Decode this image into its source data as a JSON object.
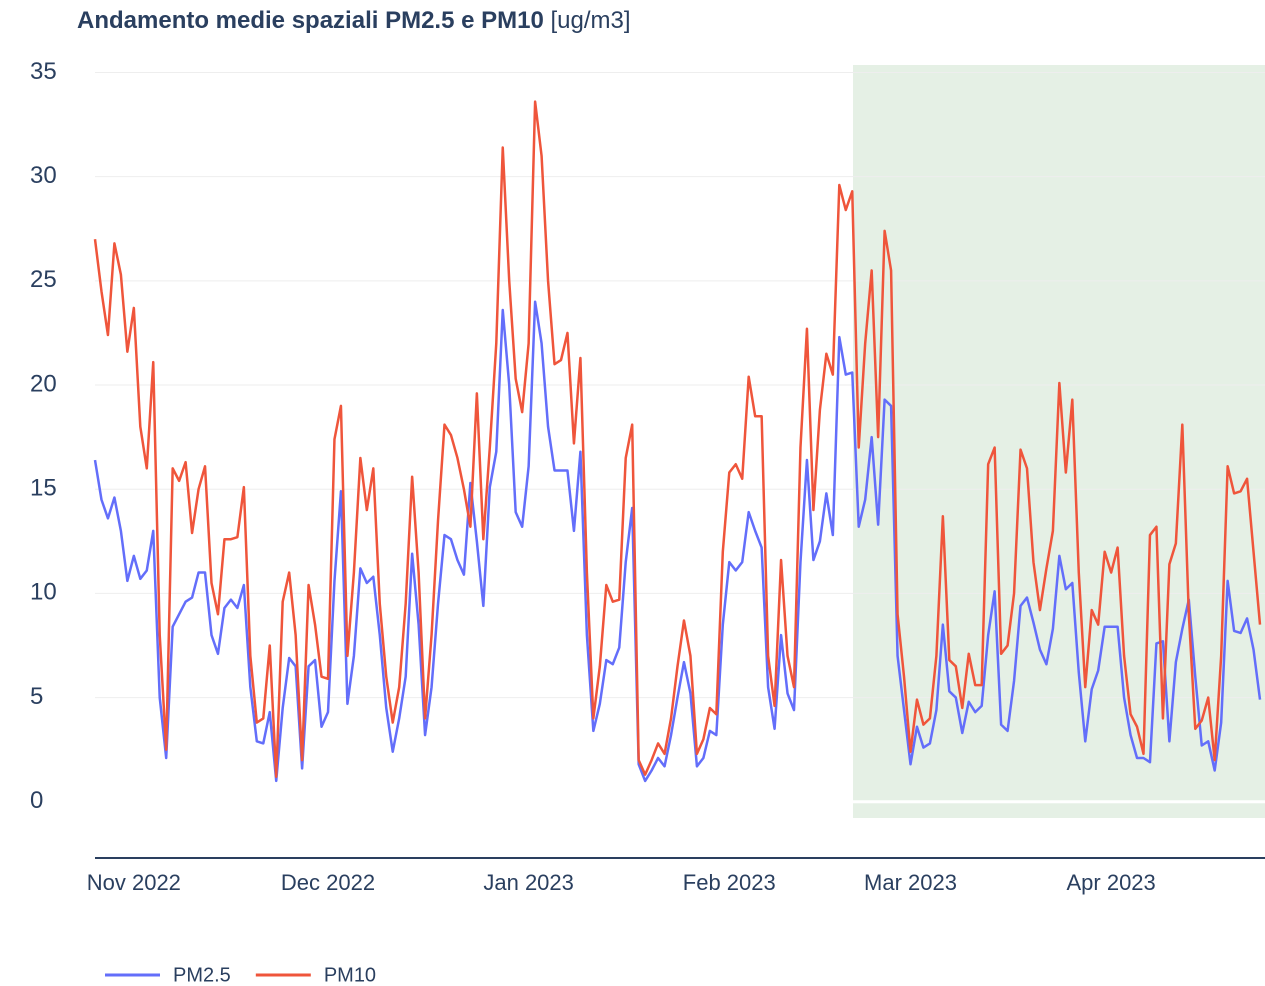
{
  "chart_data": {
    "type": "line",
    "title": "Andamento medie spaziali PM2.5 e PM10",
    "title_units": "[ug/m3]",
    "categories": [
      null,
      null,
      null,
      null,
      null,
      null,
      "Nov 2022",
      null,
      null,
      null,
      null,
      null,
      null,
      null,
      null,
      null,
      null,
      null,
      null,
      null,
      null,
      null,
      null,
      null,
      null,
      null,
      null,
      null,
      null,
      null,
      null,
      null,
      null,
      null,
      null,
      null,
      "Dec 2022",
      null,
      null,
      null,
      null,
      null,
      null,
      null,
      null,
      null,
      null,
      null,
      null,
      null,
      null,
      null,
      null,
      null,
      null,
      null,
      null,
      null,
      null,
      null,
      null,
      null,
      null,
      null,
      null,
      null,
      null,
      "Jan 2023",
      null,
      null,
      null,
      null,
      null,
      null,
      null,
      null,
      null,
      null,
      null,
      null,
      null,
      null,
      null,
      null,
      null,
      null,
      null,
      null,
      null,
      null,
      null,
      null,
      null,
      null,
      null,
      null,
      null,
      null,
      "Feb 2023",
      null,
      null,
      null,
      null,
      null,
      null,
      null,
      null,
      null,
      null,
      null,
      null,
      null,
      null,
      null,
      null,
      null,
      null,
      null,
      null,
      null,
      null,
      null,
      null,
      null,
      null,
      null,
      "Mar 2023",
      null,
      null,
      null,
      null,
      null,
      null,
      null,
      null,
      null,
      null,
      null,
      null,
      null,
      null,
      null,
      null,
      null,
      null,
      null,
      null,
      null,
      null,
      null,
      null,
      null,
      null,
      null,
      null,
      null,
      null,
      "Apr 2023",
      null,
      null,
      null,
      null,
      null,
      null,
      null,
      null,
      null,
      null,
      null,
      null,
      null,
      null,
      null,
      null,
      null,
      null,
      null,
      null,
      null,
      null,
      null
    ],
    "series": [
      {
        "name": "PM2.5",
        "color": "#636efa",
        "values": [
          16.4,
          14.5,
          13.6,
          14.6,
          13,
          10.6,
          11.8,
          10.7,
          11.1,
          13,
          5,
          2.1,
          8.4,
          9,
          9.6,
          9.8,
          11,
          11,
          8,
          7.1,
          9.3,
          9.7,
          9.3,
          10.4,
          5.5,
          2.9,
          2.8,
          4.3,
          1,
          4.5,
          6.9,
          6.5,
          1.6,
          6.5,
          6.8,
          3.6,
          4.3,
          10.6,
          14.9,
          4.7,
          7,
          11.2,
          10.5,
          10.8,
          8,
          4.5,
          2.4,
          4,
          6,
          11.9,
          8.5,
          3.2,
          5.5,
          9.5,
          12.8,
          12.6,
          11.6,
          10.9,
          15.3,
          12.5,
          9.4,
          15.1,
          16.8,
          23.6,
          20,
          13.9,
          13.2,
          16.1,
          24,
          22,
          18,
          15.9,
          15.9,
          15.9,
          13,
          16.8,
          8,
          3.4,
          4.7,
          6.8,
          6.6,
          7.4,
          11.5,
          14.1,
          1.8,
          1,
          1.5,
          2.1,
          1.7,
          3.2,
          5,
          6.7,
          5.2,
          1.7,
          2.1,
          3.4,
          3.2,
          8.5,
          11.5,
          11.1,
          11.5,
          13.9,
          13,
          12.2,
          5.5,
          3.5,
          8,
          5.2,
          4.4,
          11.5,
          16.4,
          11.6,
          12.5,
          14.8,
          12.8,
          22.3,
          20.5,
          20.6,
          13.2,
          14.5,
          17.5,
          13.3,
          19.3,
          19,
          7,
          4.4,
          1.8,
          3.6,
          2.6,
          2.8,
          4.4,
          8.5,
          5.3,
          5,
          3.3,
          4.8,
          4.3,
          4.6,
          8,
          10.1,
          3.7,
          3.4,
          5.8,
          9.4,
          9.8,
          8.6,
          7.3,
          6.6,
          8.3,
          11.8,
          10.2,
          10.5,
          6.2,
          2.9,
          5.4,
          6.3,
          8.4,
          8.4,
          8.4,
          5,
          3.2,
          2.1,
          2.1,
          1.9,
          7.6,
          7.7,
          2.9,
          6.7,
          8.3,
          9.7,
          6,
          2.7,
          2.9,
          1.5,
          3.8,
          10.6,
          8.2,
          8.1,
          8.8,
          7.3,
          4.9
        ]
      },
      {
        "name": "PM10",
        "color": "#ef553b",
        "values": [
          27,
          24.5,
          22.4,
          26.8,
          25.3,
          21.6,
          23.7,
          18,
          16,
          21.1,
          8,
          2.5,
          16,
          15.4,
          16.3,
          12.9,
          15,
          16.1,
          10.5,
          9,
          12.6,
          12.6,
          12.7,
          15.1,
          7,
          3.8,
          4,
          7.5,
          1.2,
          9.6,
          11,
          8,
          2,
          10.4,
          8.5,
          6,
          5.9,
          17.4,
          19,
          7,
          11,
          16.5,
          14,
          16,
          9.5,
          6,
          3.8,
          5.5,
          9.5,
          15.6,
          11,
          4,
          8,
          13.5,
          18.1,
          17.6,
          16.5,
          15,
          13.2,
          19.6,
          12.6,
          17,
          22,
          31.4,
          25,
          20.3,
          18.7,
          22,
          33.6,
          31,
          25,
          21,
          21.2,
          22.5,
          17.2,
          21.3,
          11,
          4,
          6.5,
          10.4,
          9.6,
          9.7,
          16.5,
          18.1,
          2,
          1.3,
          2,
          2.8,
          2.3,
          4,
          6.5,
          8.7,
          7,
          2.3,
          3,
          4.5,
          4.2,
          12,
          15.8,
          16.2,
          15.5,
          20.4,
          18.5,
          18.5,
          7,
          4.6,
          11.6,
          7,
          5.5,
          17,
          22.7,
          14,
          18.8,
          21.5,
          20.5,
          29.6,
          28.4,
          29.3,
          17,
          22,
          25.5,
          17.5,
          27.4,
          25.5,
          9,
          6,
          2.4,
          4.9,
          3.7,
          4,
          7,
          13.7,
          6.8,
          6.5,
          4.5,
          7.1,
          5.6,
          5.6,
          16.2,
          17,
          7.1,
          7.5,
          10,
          16.9,
          16,
          11.5,
          9.2,
          11.2,
          13,
          20.1,
          15.8,
          19.3,
          11,
          5.5,
          9.2,
          8.5,
          12,
          11,
          12.2,
          7,
          4.2,
          3.6,
          2.3,
          12.8,
          13.2,
          4,
          11.4,
          12.4,
          18.1,
          9,
          3.5,
          3.9,
          5,
          2,
          7,
          16.1,
          14.8,
          14.9,
          15.5,
          12,
          8.5
        ]
      }
    ],
    "ylim": [
      -2.7,
      35.6
    ],
    "yticks": [
      0,
      5,
      10,
      15,
      20,
      25,
      30,
      35
    ],
    "grid": true
  }
}
